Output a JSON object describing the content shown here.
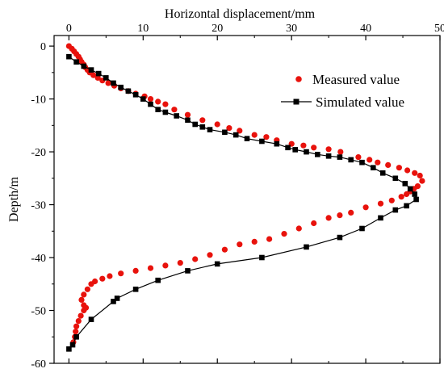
{
  "chart_data": {
    "type": "scatter",
    "title": "",
    "xlabel": "Horizontal displacement/mm",
    "ylabel": "Depth/m",
    "xlim": [
      -2,
      50
    ],
    "ylim": [
      -60,
      2
    ],
    "x_ticks": [
      0,
      10,
      20,
      30,
      40,
      50
    ],
    "y_ticks": [
      0,
      -10,
      -20,
      -30,
      -40,
      -50,
      -60
    ],
    "x_axis_position": "top",
    "grid": false,
    "legend_position": "top-right",
    "series": [
      {
        "name": "Measured value",
        "marker": "circle",
        "line": false,
        "color": "#e8120c",
        "points": [
          [
            0.0,
            0.0
          ],
          [
            0.4,
            -0.5
          ],
          [
            0.7,
            -1.0
          ],
          [
            1.0,
            -1.5
          ],
          [
            1.3,
            -2.0
          ],
          [
            1.5,
            -2.5
          ],
          [
            1.7,
            -3.0
          ],
          [
            2.0,
            -3.5
          ],
          [
            2.2,
            -4.0
          ],
          [
            2.5,
            -4.5
          ],
          [
            2.8,
            -5.0
          ],
          [
            3.3,
            -5.5
          ],
          [
            3.9,
            -6.0
          ],
          [
            4.5,
            -6.5
          ],
          [
            5.3,
            -7.0
          ],
          [
            6.1,
            -7.5
          ],
          [
            7.0,
            -8.0
          ],
          [
            8.0,
            -8.5
          ],
          [
            9.0,
            -9.0
          ],
          [
            10.2,
            -9.5
          ],
          [
            11.0,
            -10.0
          ],
          [
            12.0,
            -10.5
          ],
          [
            13.0,
            -11.0
          ],
          [
            14.2,
            -12.0
          ],
          [
            16.0,
            -13.0
          ],
          [
            18.0,
            -14.0
          ],
          [
            20.0,
            -14.8
          ],
          [
            21.6,
            -15.5
          ],
          [
            23.0,
            -16.0
          ],
          [
            25.0,
            -16.8
          ],
          [
            26.6,
            -17.2
          ],
          [
            28.0,
            -17.8
          ],
          [
            30.0,
            -18.5
          ],
          [
            31.6,
            -18.8
          ],
          [
            33.0,
            -19.2
          ],
          [
            35.0,
            -19.5
          ],
          [
            36.6,
            -20.0
          ],
          [
            39.0,
            -21.0
          ],
          [
            40.5,
            -21.5
          ],
          [
            41.6,
            -22.0
          ],
          [
            43.0,
            -22.5
          ],
          [
            44.5,
            -23.0
          ],
          [
            45.6,
            -23.5
          ],
          [
            46.6,
            -24.0
          ],
          [
            47.3,
            -24.5
          ],
          [
            47.6,
            -25.5
          ],
          [
            47.0,
            -26.5
          ],
          [
            46.5,
            -27.0
          ],
          [
            46.0,
            -27.5
          ],
          [
            45.5,
            -28.0
          ],
          [
            44.8,
            -28.5
          ],
          [
            43.5,
            -29.2
          ],
          [
            42.0,
            -29.8
          ],
          [
            40.0,
            -30.5
          ],
          [
            38.0,
            -31.5
          ],
          [
            36.5,
            -32.0
          ],
          [
            35.0,
            -32.5
          ],
          [
            33.0,
            -33.5
          ],
          [
            31.0,
            -34.5
          ],
          [
            29.0,
            -35.5
          ],
          [
            27.0,
            -36.5
          ],
          [
            25.0,
            -37.0
          ],
          [
            23.0,
            -37.5
          ],
          [
            21.0,
            -38.5
          ],
          [
            19.0,
            -39.5
          ],
          [
            17.0,
            -40.3
          ],
          [
            15.0,
            -41.0
          ],
          [
            13.0,
            -41.5
          ],
          [
            11.0,
            -42.0
          ],
          [
            9.0,
            -42.5
          ],
          [
            7.0,
            -43.0
          ],
          [
            5.5,
            -43.5
          ],
          [
            4.5,
            -44.0
          ],
          [
            3.5,
            -44.5
          ],
          [
            3.0,
            -45.0
          ],
          [
            2.5,
            -46.0
          ],
          [
            2.0,
            -47.0
          ],
          [
            1.7,
            -48.0
          ],
          [
            2.0,
            -49.0
          ],
          [
            2.3,
            -49.5
          ],
          [
            2.0,
            -50.0
          ],
          [
            1.6,
            -51.0
          ],
          [
            1.3,
            -52.0
          ],
          [
            1.0,
            -53.0
          ],
          [
            0.9,
            -54.0
          ],
          [
            0.8,
            -55.0
          ],
          [
            0.6,
            -56.0
          ]
        ]
      },
      {
        "name": "Simulated value",
        "marker": "square",
        "line": true,
        "color": "#000000",
        "points": [
          [
            0.0,
            -2.0
          ],
          [
            1.0,
            -3.0
          ],
          [
            2.0,
            -3.8
          ],
          [
            3.0,
            -4.5
          ],
          [
            4.0,
            -5.2
          ],
          [
            5.0,
            -6.0
          ],
          [
            6.0,
            -7.0
          ],
          [
            7.0,
            -7.8
          ],
          [
            8.0,
            -8.5
          ],
          [
            9.0,
            -9.2
          ],
          [
            10.0,
            -10.0
          ],
          [
            11.0,
            -11.0
          ],
          [
            12.0,
            -12.0
          ],
          [
            13.0,
            -12.5
          ],
          [
            14.5,
            -13.2
          ],
          [
            16.0,
            -14.0
          ],
          [
            17.0,
            -14.8
          ],
          [
            18.0,
            -15.3
          ],
          [
            19.0,
            -15.8
          ],
          [
            21.0,
            -16.3
          ],
          [
            22.5,
            -16.8
          ],
          [
            24.0,
            -17.5
          ],
          [
            26.0,
            -18.0
          ],
          [
            28.0,
            -18.5
          ],
          [
            29.5,
            -19.2
          ],
          [
            30.5,
            -19.6
          ],
          [
            32.0,
            -20.0
          ],
          [
            33.5,
            -20.5
          ],
          [
            35.0,
            -20.8
          ],
          [
            36.5,
            -21.0
          ],
          [
            38.0,
            -21.5
          ],
          [
            39.5,
            -22.0
          ],
          [
            41.0,
            -23.0
          ],
          [
            42.3,
            -24.0
          ],
          [
            44.0,
            -25.0
          ],
          [
            45.3,
            -26.0
          ],
          [
            46.0,
            -27.0
          ],
          [
            46.6,
            -28.0
          ],
          [
            46.8,
            -29.0
          ],
          [
            45.5,
            -30.2
          ],
          [
            44.0,
            -31.0
          ],
          [
            42.0,
            -32.5
          ],
          [
            39.5,
            -34.5
          ],
          [
            36.5,
            -36.2
          ],
          [
            32.0,
            -38.0
          ],
          [
            26.0,
            -40.0
          ],
          [
            20.0,
            -41.2
          ],
          [
            16.0,
            -42.5
          ],
          [
            12.0,
            -44.3
          ],
          [
            9.0,
            -46.0
          ],
          [
            6.5,
            -47.7
          ],
          [
            6.0,
            -48.3
          ],
          [
            3.0,
            -51.7
          ],
          [
            1.0,
            -55.0
          ],
          [
            0.5,
            -56.5
          ],
          [
            0.0,
            -57.3
          ]
        ]
      }
    ]
  }
}
